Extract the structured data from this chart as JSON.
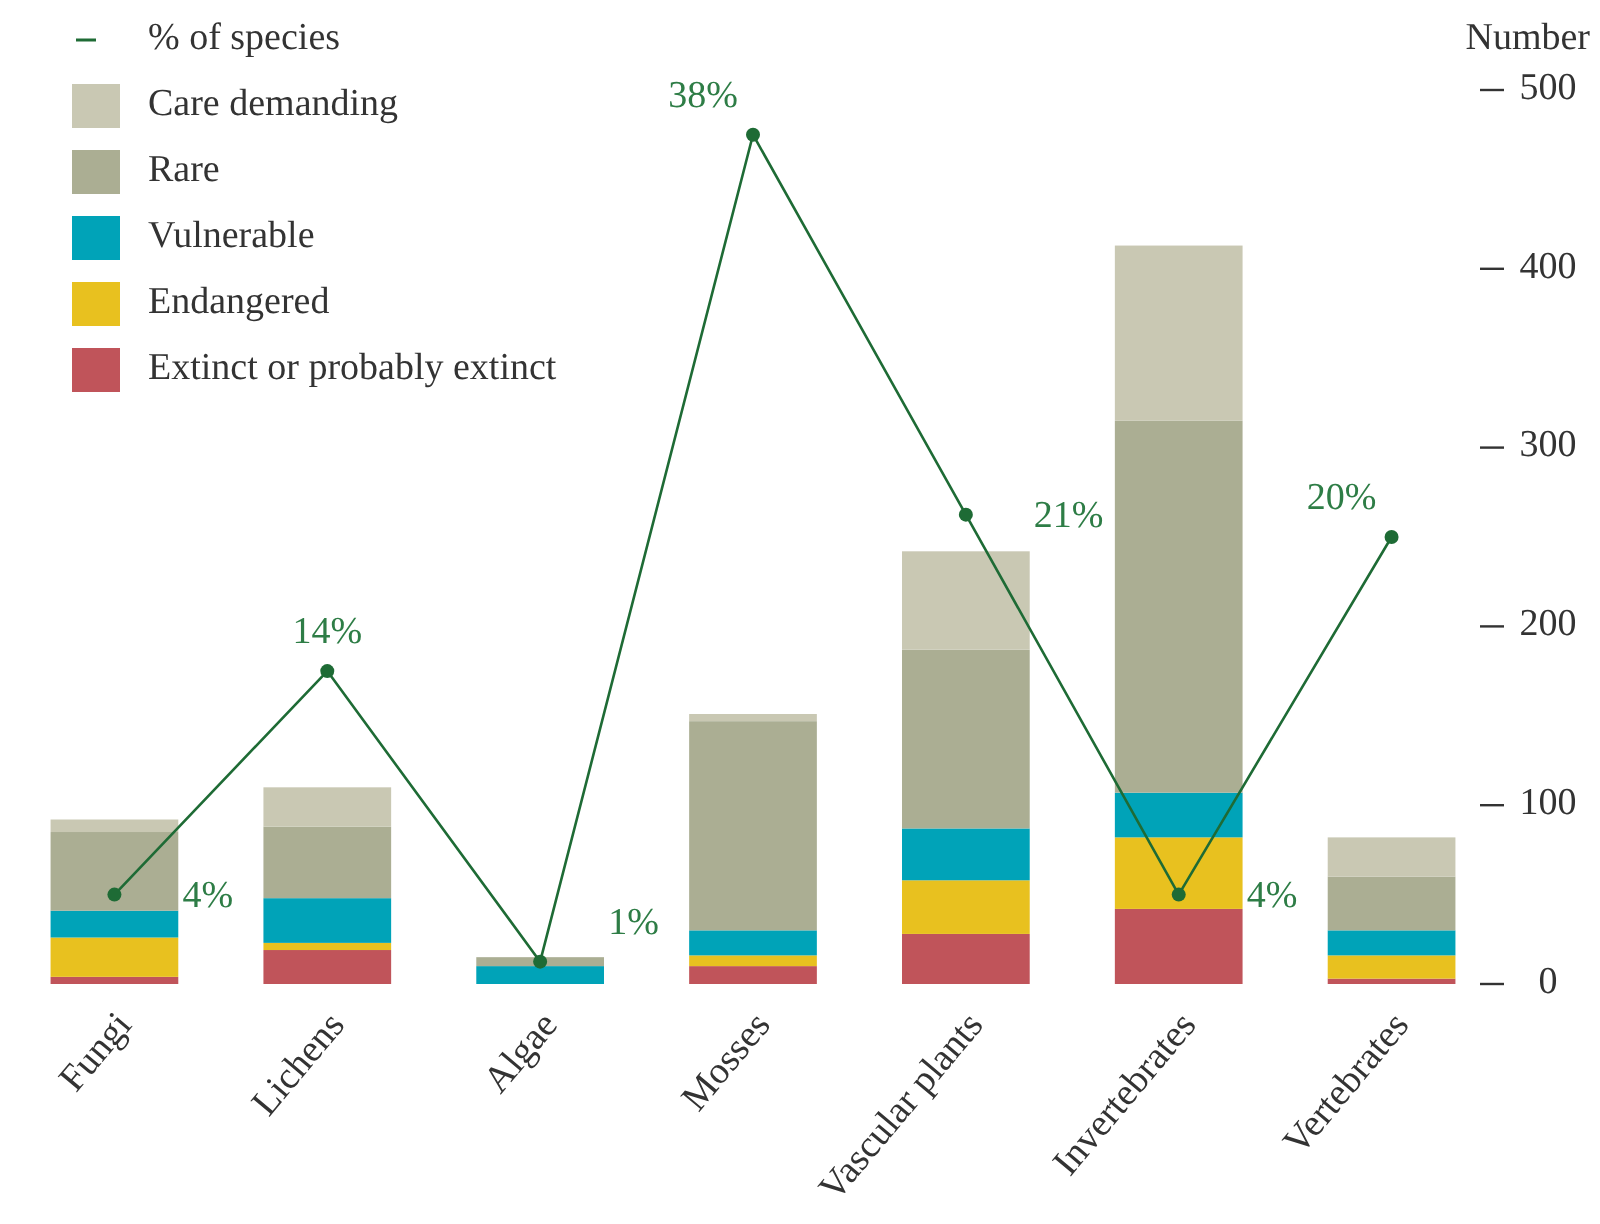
{
  "chart_data": {
    "type": "bar",
    "stacked": true,
    "ylabel": "Number",
    "categories": [
      "Fungi",
      "Lichens",
      "Algae",
      "Mosses",
      "Vascular plants",
      "Invertebrates",
      "Vertebrates"
    ],
    "series": [
      {
        "name": "Extinct or probably extinct",
        "color": "#c0545a",
        "values": [
          4,
          19,
          0,
          10,
          28,
          42,
          3
        ]
      },
      {
        "name": "Endangered",
        "color": "#e8c11f",
        "values": [
          22,
          4,
          0,
          6,
          30,
          40,
          13
        ]
      },
      {
        "name": "Vulnerable",
        "color": "#00a3b8",
        "values": [
          15,
          25,
          10,
          14,
          29,
          25,
          14
        ]
      },
      {
        "name": "Rare",
        "color": "#abae93",
        "values": [
          44,
          40,
          5,
          117,
          100,
          208,
          30
        ]
      },
      {
        "name": "Care demanding",
        "color": "#c9c8b3",
        "values": [
          7,
          22,
          0,
          4,
          55,
          98,
          22
        ]
      },
      {
        "name": "% of species",
        "type": "line",
        "axis": "y2",
        "color": "#1e6b35",
        "values": [
          4,
          14,
          1,
          38,
          21,
          4,
          20
        ],
        "value_labels": [
          "4%",
          "14%",
          "1%",
          "38%",
          "21%",
          "4%",
          "20%"
        ]
      }
    ],
    "ylim": [
      0,
      500
    ],
    "yticks": [
      0,
      100,
      200,
      300,
      400,
      500
    ],
    "y2lim": [
      0,
      40
    ],
    "legend": "top left",
    "marker": "circle",
    "line_style": "solid"
  }
}
